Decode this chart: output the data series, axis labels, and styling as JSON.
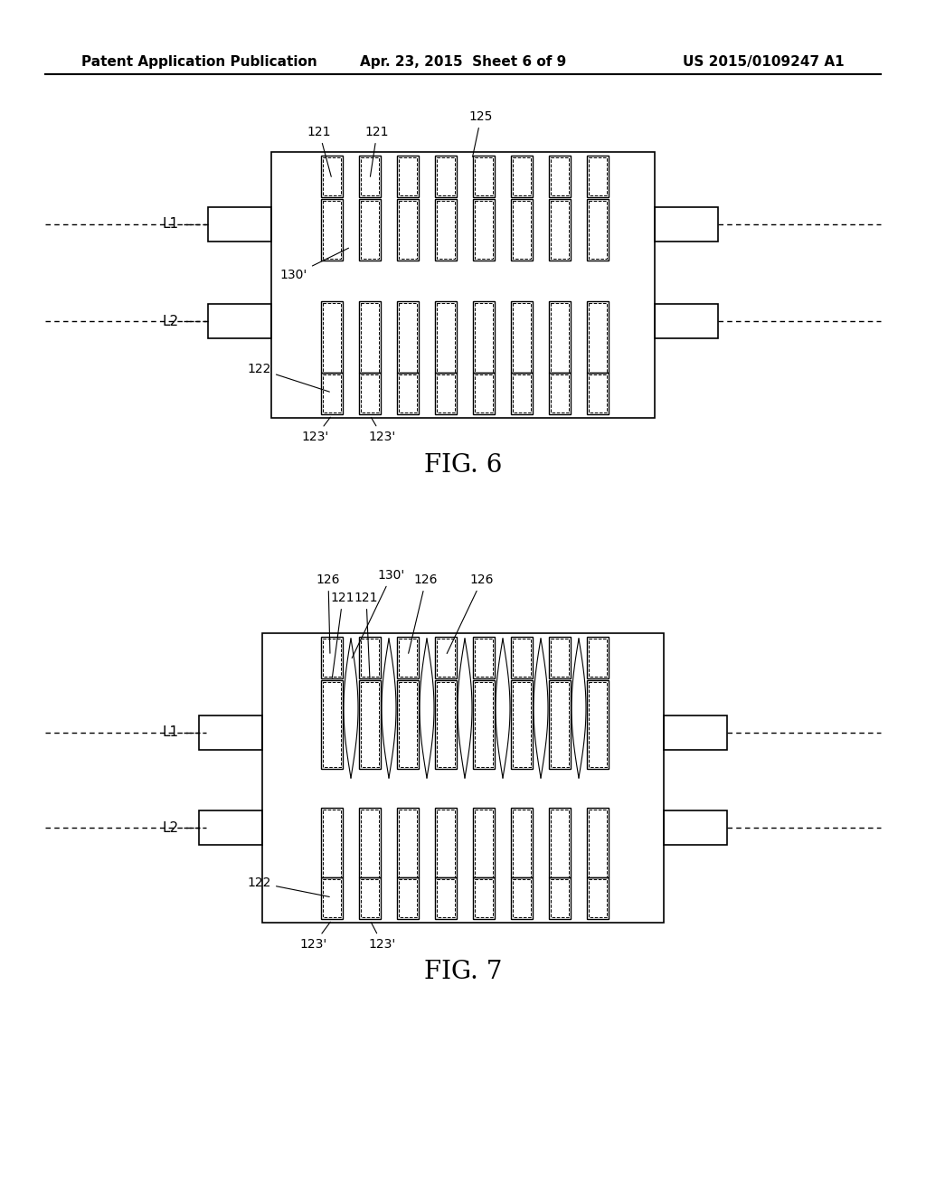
{
  "page_header_left": "Patent Application Publication",
  "page_header_center": "Apr. 23, 2015  Sheet 6 of 9",
  "page_header_right": "US 2015/0109247 A1",
  "fig6_caption": "FIG. 6",
  "fig7_caption": "FIG. 7",
  "bg_color": "#ffffff",
  "line_color": "#000000",
  "dashed_color": "#888888",
  "header_font_size": 11,
  "caption_font_size": 20,
  "label_font_size": 10
}
